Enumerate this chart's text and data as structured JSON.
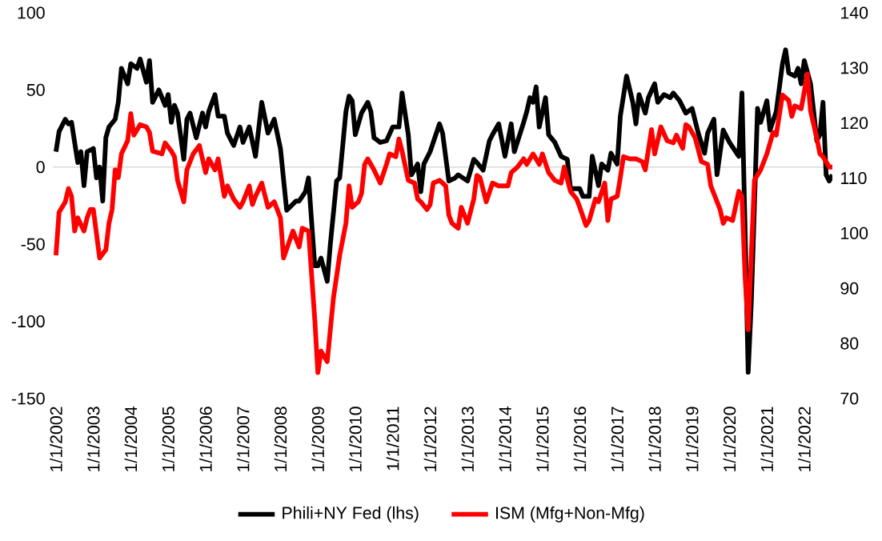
{
  "chart_data": {
    "type": "line",
    "xlim": [
      "2001-12",
      "2022-10"
    ],
    "xticks": [
      {
        "value": "2002-01-01",
        "label": "1/1/2002"
      },
      {
        "value": "2003-01-01",
        "label": "1/1/2003"
      },
      {
        "value": "2004-01-01",
        "label": "1/1/2004"
      },
      {
        "value": "2005-01-01",
        "label": "1/1/2005"
      },
      {
        "value": "2006-01-01",
        "label": "1/1/2006"
      },
      {
        "value": "2007-01-01",
        "label": "1/1/2007"
      },
      {
        "value": "2008-01-01",
        "label": "1/1/2008"
      },
      {
        "value": "2009-01-01",
        "label": "1/1/2009"
      },
      {
        "value": "2010-01-01",
        "label": "1/1/2010"
      },
      {
        "value": "2011-01-01",
        "label": "1/1/2011"
      },
      {
        "value": "2012-01-01",
        "label": "1/1/2012"
      },
      {
        "value": "2013-01-01",
        "label": "1/1/2013"
      },
      {
        "value": "2014-01-01",
        "label": "1/1/2014"
      },
      {
        "value": "2015-01-01",
        "label": "1/1/2015"
      },
      {
        "value": "2016-01-01",
        "label": "1/1/2016"
      },
      {
        "value": "2017-01-01",
        "label": "1/1/2017"
      },
      {
        "value": "2018-01-01",
        "label": "1/1/2018"
      },
      {
        "value": "2019-01-01",
        "label": "1/1/2019"
      },
      {
        "value": "2020-01-01",
        "label": "1/1/2020"
      },
      {
        "value": "2021-01-01",
        "label": "1/1/2021"
      },
      {
        "value": "2022-01-01",
        "label": "1/1/2022"
      }
    ],
    "ylim": [
      -150,
      100
    ],
    "yticks": [
      -150,
      -100,
      -50,
      0,
      50,
      100
    ],
    "y2lim": [
      70,
      140
    ],
    "y2ticks": [
      70,
      80,
      90,
      100,
      110,
      120,
      130,
      140
    ],
    "ref_lines": [
      {
        "axis": "y",
        "value": 0,
        "color": "#d9d9d9"
      }
    ],
    "legend": "bottom",
    "series": [
      {
        "name": "Phili+NY Fed (lhs)",
        "color": "#000000",
        "x": [
          "2002-01",
          "2002-02",
          "2002-04",
          "2002-05",
          "2002-06",
          "2002-08",
          "2002-09",
          "2002-10",
          "2002-11",
          "2003-01",
          "2003-02",
          "2003-03",
          "2003-04",
          "2003-05",
          "2003-06",
          "2003-08",
          "2003-09",
          "2003-10",
          "2003-12",
          "2004-01",
          "2004-03",
          "2004-04",
          "2004-06",
          "2004-07",
          "2004-08",
          "2004-10",
          "2004-12",
          "2005-01",
          "2005-02",
          "2005-03",
          "2005-04",
          "2005-06",
          "2005-07",
          "2005-08",
          "2005-10",
          "2005-12",
          "2006-01",
          "2006-02",
          "2006-04",
          "2006-05",
          "2006-07",
          "2006-08",
          "2006-10",
          "2006-12",
          "2007-01",
          "2007-03",
          "2007-05",
          "2007-07",
          "2007-09",
          "2007-11",
          "2008-01",
          "2008-03",
          "2008-06",
          "2008-07",
          "2008-09",
          "2008-10",
          "2008-12",
          "2009-01",
          "2009-02",
          "2009-04",
          "2009-05",
          "2009-07",
          "2009-08",
          "2009-10",
          "2009-11",
          "2009-12",
          "2010-01",
          "2010-03",
          "2010-05",
          "2010-06",
          "2010-07",
          "2010-09",
          "2010-11",
          "2011-01",
          "2011-03",
          "2011-04",
          "2011-06",
          "2011-07",
          "2011-09",
          "2011-10",
          "2011-11",
          "2012-01",
          "2012-04",
          "2012-05",
          "2012-07",
          "2012-09",
          "2012-10",
          "2013-01",
          "2013-03",
          "2013-04",
          "2013-06",
          "2013-08",
          "2013-09",
          "2013-11",
          "2014-01",
          "2014-03",
          "2014-04",
          "2014-07",
          "2014-08",
          "2014-09",
          "2014-10",
          "2014-11",
          "2014-12",
          "2015-02",
          "2015-03",
          "2015-05",
          "2015-07",
          "2015-09",
          "2015-10",
          "2016-01",
          "2016-02",
          "2016-04",
          "2016-05",
          "2016-07",
          "2016-08",
          "2016-10",
          "2016-11",
          "2017-01",
          "2017-02",
          "2017-04",
          "2017-06",
          "2017-07",
          "2017-08",
          "2017-10",
          "2017-11",
          "2018-01",
          "2018-02",
          "2018-04",
          "2018-06",
          "2018-07",
          "2018-09",
          "2018-11",
          "2019-01",
          "2019-03",
          "2019-05",
          "2019-06",
          "2019-08",
          "2019-09",
          "2019-11",
          "2020-01",
          "2020-03",
          "2020-04",
          "2020-05",
          "2020-06",
          "2020-07",
          "2020-08",
          "2020-10",
          "2020-11",
          "2021-01",
          "2021-02",
          "2021-04",
          "2021-06",
          "2021-07",
          "2021-08",
          "2021-10",
          "2021-11",
          "2021-12",
          "2022-01",
          "2022-03",
          "2022-04",
          "2022-05",
          "2022-06",
          "2022-07",
          "2022-08",
          "2022-09",
          "2022-10"
        ],
        "values": [
          10,
          23,
          31,
          28,
          29,
          3,
          10,
          -12,
          10,
          12,
          -7,
          0,
          -22,
          19,
          26,
          31,
          42,
          64,
          54,
          67,
          64,
          70,
          55,
          69,
          42,
          50,
          40,
          47,
          29,
          40,
          35,
          5,
          31,
          35,
          19,
          35,
          26,
          36,
          47,
          33,
          33,
          22,
          14,
          26,
          16,
          26,
          7,
          42,
          22,
          31,
          12,
          -28,
          -22,
          -22,
          -16,
          -7,
          -64,
          -64,
          -59,
          -74,
          -50,
          -9,
          -7,
          36,
          46,
          43,
          21,
          35,
          42,
          36,
          19,
          16,
          17,
          26,
          26,
          48,
          21,
          -5,
          2,
          -16,
          2,
          10,
          28,
          22,
          -9,
          -7,
          -5,
          -9,
          5,
          3,
          -2,
          17,
          21,
          28,
          7,
          28,
          10,
          29,
          36,
          45,
          42,
          52,
          26,
          45,
          21,
          16,
          7,
          5,
          -14,
          -14,
          -19,
          -19,
          7,
          -12,
          2,
          -2,
          9,
          2,
          33,
          59,
          42,
          28,
          47,
          35,
          45,
          54,
          42,
          47,
          45,
          48,
          43,
          35,
          38,
          22,
          9,
          22,
          31,
          -5,
          24,
          16,
          10,
          7,
          48,
          -40,
          -133,
          -88,
          38,
          29,
          43,
          24,
          36,
          67,
          76,
          61,
          59,
          64,
          54,
          69,
          54,
          36,
          17,
          21,
          42,
          -5,
          -9,
          -5
        ]
      },
      {
        "name": "ISM (Mfg+Non-Mfg)",
        "color": "#ff0000",
        "axis": "y2",
        "x": [
          "2002-01",
          "2002-02",
          "2002-04",
          "2002-05",
          "2002-06",
          "2002-07",
          "2002-08",
          "2002-10",
          "2002-11",
          "2002-12",
          "2003-01",
          "2003-02",
          "2003-03",
          "2003-05",
          "2003-06",
          "2003-07",
          "2003-08",
          "2003-09",
          "2003-10",
          "2003-12",
          "2004-01",
          "2004-02",
          "2004-04",
          "2004-06",
          "2004-07",
          "2004-08",
          "2004-11",
          "2004-12",
          "2005-02",
          "2005-03",
          "2005-04",
          "2005-06",
          "2005-07",
          "2005-09",
          "2005-11",
          "2006-01",
          "2006-02",
          "2006-04",
          "2006-05",
          "2006-07",
          "2006-08",
          "2006-10",
          "2006-12",
          "2007-01",
          "2007-03",
          "2007-04",
          "2007-05",
          "2007-07",
          "2007-09",
          "2007-11",
          "2008-01",
          "2008-02",
          "2008-05",
          "2008-07",
          "2008-08",
          "2008-10",
          "2008-12",
          "2009-01",
          "2009-02",
          "2009-04",
          "2009-06",
          "2009-08",
          "2009-10",
          "2009-11",
          "2009-12",
          "2010-02",
          "2010-03",
          "2010-04",
          "2010-05",
          "2010-07",
          "2010-09",
          "2010-11",
          "2010-12",
          "2011-02",
          "2011-03",
          "2011-04",
          "2011-06",
          "2011-08",
          "2011-09",
          "2011-10",
          "2011-12",
          "2012-01",
          "2012-02",
          "2012-04",
          "2012-06",
          "2012-07",
          "2012-08",
          "2012-10",
          "2012-11",
          "2013-01",
          "2013-03",
          "2013-04",
          "2013-05",
          "2013-07",
          "2013-09",
          "2013-11",
          "2014-02",
          "2014-03",
          "2014-05",
          "2014-07",
          "2014-08",
          "2014-10",
          "2014-12",
          "2015-01",
          "2015-03",
          "2015-05",
          "2015-07",
          "2015-08",
          "2015-10",
          "2015-12",
          "2016-01",
          "2016-03",
          "2016-04",
          "2016-06",
          "2016-07",
          "2016-09",
          "2016-10",
          "2016-11",
          "2017-01",
          "2017-02",
          "2017-03",
          "2017-05",
          "2017-07",
          "2017-09",
          "2017-10",
          "2017-12",
          "2018-01",
          "2018-03",
          "2018-05",
          "2018-07",
          "2018-08",
          "2018-10",
          "2018-11",
          "2018-12",
          "2019-02",
          "2019-04",
          "2019-06",
          "2019-07",
          "2019-10",
          "2019-11",
          "2019-12",
          "2020-02",
          "2020-04",
          "2020-05",
          "2020-06",
          "2020-07",
          "2020-08",
          "2020-09",
          "2020-11",
          "2021-01",
          "2021-03",
          "2021-04",
          "2021-06",
          "2021-08",
          "2021-09",
          "2021-10",
          "2021-12",
          "2022-02",
          "2022-03",
          "2022-05",
          "2022-06",
          "2022-07",
          "2022-09",
          "2022-10"
        ],
        "values": [
          96.0,
          103.8,
          105.7,
          108.1,
          106.7,
          100.4,
          102.8,
          100.4,
          102.8,
          104.3,
          104.3,
          99.9,
          95.5,
          97.0,
          101.8,
          104.3,
          111.5,
          110.1,
          114.4,
          116.8,
          121.7,
          117.8,
          119.7,
          119.3,
          118.3,
          114.9,
          114.4,
          116.4,
          114.9,
          113.9,
          109.6,
          105.7,
          111.5,
          114.4,
          115.9,
          111.0,
          113.5,
          111.5,
          113.5,
          106.7,
          108.6,
          106.2,
          104.7,
          105.7,
          108.6,
          105.2,
          106.7,
          109.1,
          104.7,
          105.7,
          102.8,
          95.5,
          100.4,
          97.5,
          100.9,
          100.4,
          84.4,
          74.7,
          78.6,
          76.7,
          88.3,
          96.0,
          101.8,
          108.6,
          104.7,
          105.7,
          107.2,
          112.5,
          113.5,
          111.5,
          109.1,
          112.5,
          114.4,
          113.9,
          117.1,
          114.9,
          109.6,
          109.1,
          106.2,
          105.7,
          104.3,
          105.2,
          109.1,
          109.6,
          108.6,
          103.3,
          101.8,
          100.9,
          104.7,
          101.8,
          106.2,
          110.5,
          110.1,
          105.7,
          109.1,
          108.6,
          108.6,
          111.0,
          112.0,
          113.5,
          112.5,
          114.4,
          112.5,
          114.4,
          111.0,
          109.6,
          109.1,
          112.0,
          107.6,
          106.2,
          104.7,
          101.4,
          102.3,
          106.2,
          105.7,
          109.1,
          102.3,
          106.2,
          106.7,
          110.1,
          113.9,
          113.5,
          113.5,
          113.0,
          111.5,
          118.8,
          114.4,
          119.3,
          116.8,
          116.4,
          117.8,
          115.4,
          119.7,
          119.3,
          117.3,
          113.0,
          112.5,
          108.6,
          104.3,
          101.8,
          102.8,
          102.3,
          107.6,
          106.7,
          92.2,
          82.5,
          96.0,
          109.6,
          111.5,
          114.4,
          118.3,
          117.8,
          125.1,
          124.1,
          121.2,
          123.1,
          122.6,
          128.9,
          122.2,
          117.3,
          114.4,
          113.9,
          112.0,
          112.0
        ]
      }
    ]
  }
}
